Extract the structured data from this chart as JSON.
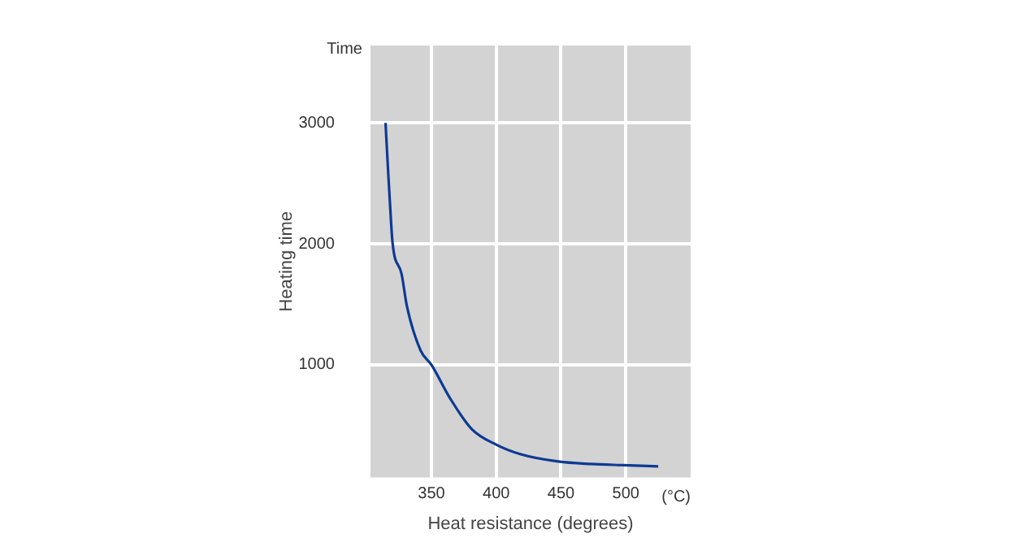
{
  "chart_data": {
    "type": "line",
    "xlabel": "Heat resistance (degrees)",
    "ylabel": "Heating time",
    "annotations": [
      "Time",
      "(°C)"
    ],
    "x": [
      314.6,
      316.7,
      318,
      320,
      327,
      331,
      341.6,
      350,
      364.6,
      381,
      400,
      419,
      448,
      473,
      498,
      525
    ],
    "series": [
      {
        "color": "#0d3a94",
        "values": [
          3000,
          2580,
          2340,
          2010,
          1750,
          1490,
          1120,
          1000,
          720,
          470,
          340,
          260,
          200,
          180,
          170,
          160
        ]
      }
    ],
    "xlim": [
      303,
      550
    ],
    "xticks": [
      350,
      400,
      450,
      500
    ],
    "ylim": [
      68,
      3640
    ],
    "yticks": [
      {
        "value": 1000,
        "label": "1000"
      },
      {
        "value": 2000,
        "label": "2000"
      },
      {
        "value": 3000,
        "label": "3000"
      }
    ],
    "grid": true,
    "legend": false,
    "marker": "none",
    "line_style": "solid"
  }
}
